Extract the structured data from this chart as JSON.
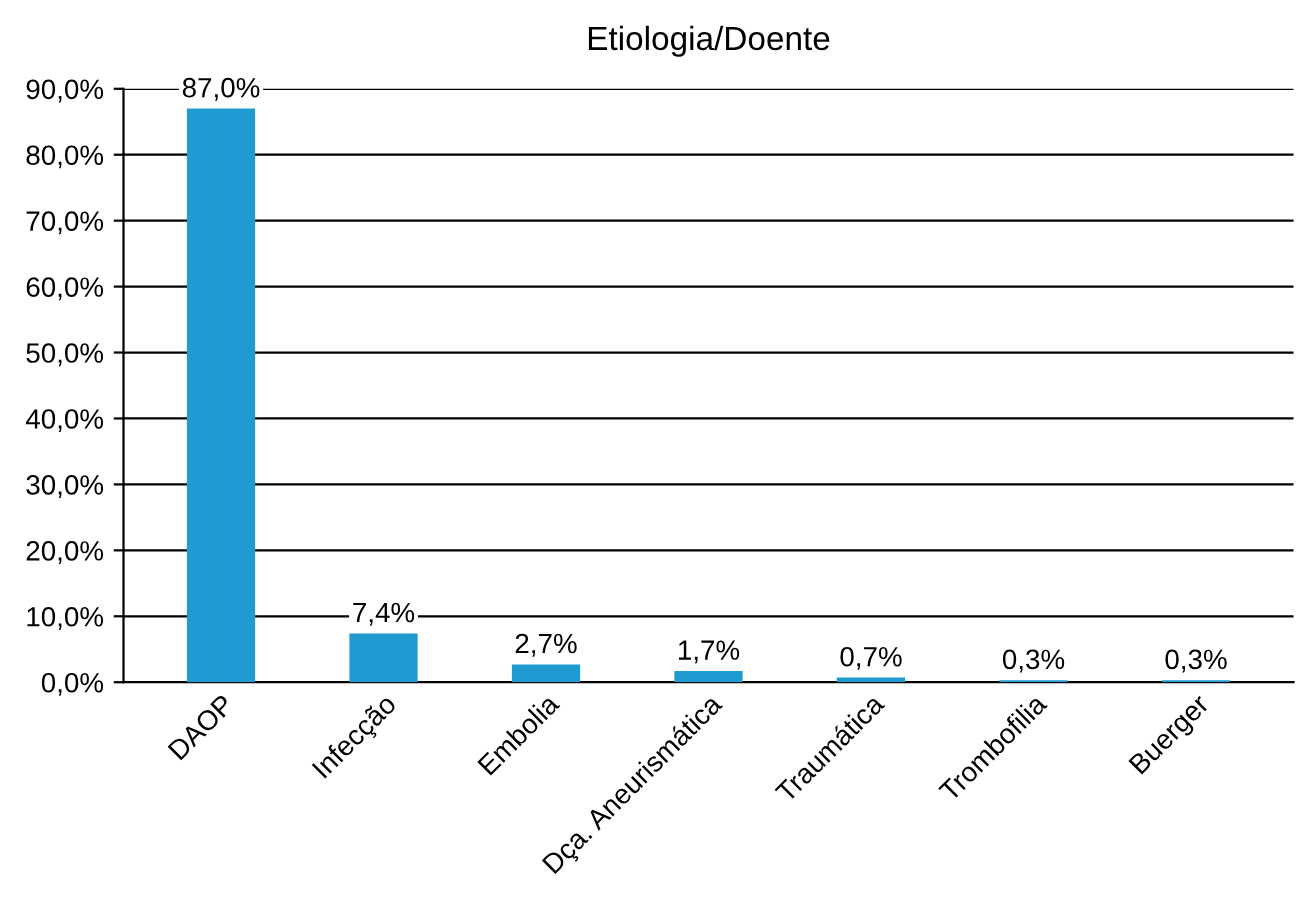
{
  "chart_data": {
    "type": "bar",
    "title": "Etiologia/Doente",
    "categories": [
      "DAOP",
      "Infecção",
      "Embolia",
      "Dça. Aneurismática",
      "Traumática",
      "Trombofilia",
      "Buerger"
    ],
    "values": [
      87.0,
      7.4,
      2.7,
      1.7,
      0.7,
      0.3,
      0.3
    ],
    "value_labels": [
      "87,0%",
      "7,4%",
      "2,7%",
      "1,7%",
      "0,7%",
      "0,3%",
      "0,3%"
    ],
    "color": "#1f9bd1",
    "ylim": [
      0,
      90
    ],
    "yticks": [
      {
        "value": 0,
        "label": "0,0%"
      },
      {
        "value": 10,
        "label": "10,0%"
      },
      {
        "value": 20,
        "label": "20,0%"
      },
      {
        "value": 30,
        "label": "30,0%"
      },
      {
        "value": 40,
        "label": "40,0%"
      },
      {
        "value": 50,
        "label": "50,0%"
      },
      {
        "value": 60,
        "label": "60,0%"
      },
      {
        "value": 70,
        "label": "70,0%"
      },
      {
        "value": 80,
        "label": "80,0%"
      },
      {
        "value": 90,
        "label": "90,0%"
      }
    ],
    "grid": "y"
  }
}
